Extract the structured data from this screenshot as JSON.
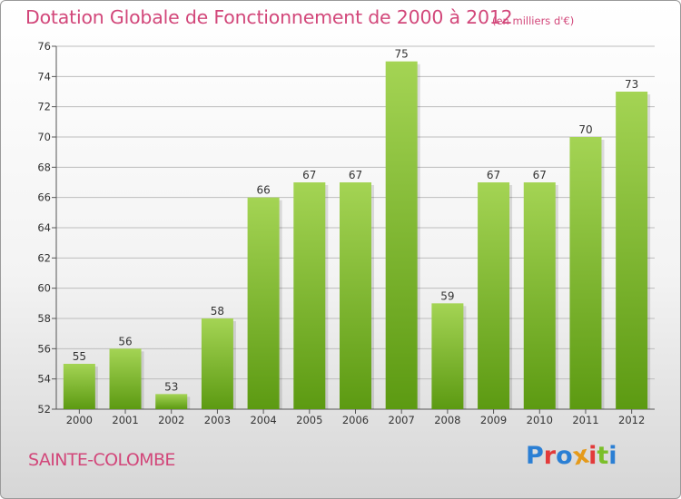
{
  "title": "Dotation Globale de Fonctionnement de 2000 à 2012",
  "unit": "(en milliers d'€)",
  "commune": "SAINTE-COLOMBE",
  "logo": {
    "text": "Proxiti",
    "letter_colors": [
      "#2b7fd4",
      "#e23a3a",
      "#2b7fd4",
      "#e59a1a",
      "#e23a3a",
      "#7bbf2a",
      "#2b7fd4"
    ]
  },
  "colors": {
    "title": "#d2477a",
    "bar_top": "#a4d454",
    "bar_bottom": "#5c9a12",
    "grid": "#bdbdbd",
    "axis": "#555555"
  },
  "chart_data": {
    "type": "bar",
    "title": "Dotation Globale de Fonctionnement de 2000 à 2012",
    "xlabel": "",
    "ylabel": "",
    "categories": [
      "2000",
      "2001",
      "2002",
      "2003",
      "2004",
      "2005",
      "2006",
      "2007",
      "2008",
      "2009",
      "2010",
      "2011",
      "2012"
    ],
    "values": [
      55,
      56,
      53,
      58,
      66,
      67,
      67,
      75,
      59,
      67,
      67,
      70,
      73
    ],
    "ylim": [
      52,
      76
    ],
    "yticks": [
      52,
      54,
      56,
      58,
      60,
      62,
      64,
      66,
      68,
      70,
      72,
      74,
      76
    ],
    "grid": true,
    "legend": "none"
  }
}
